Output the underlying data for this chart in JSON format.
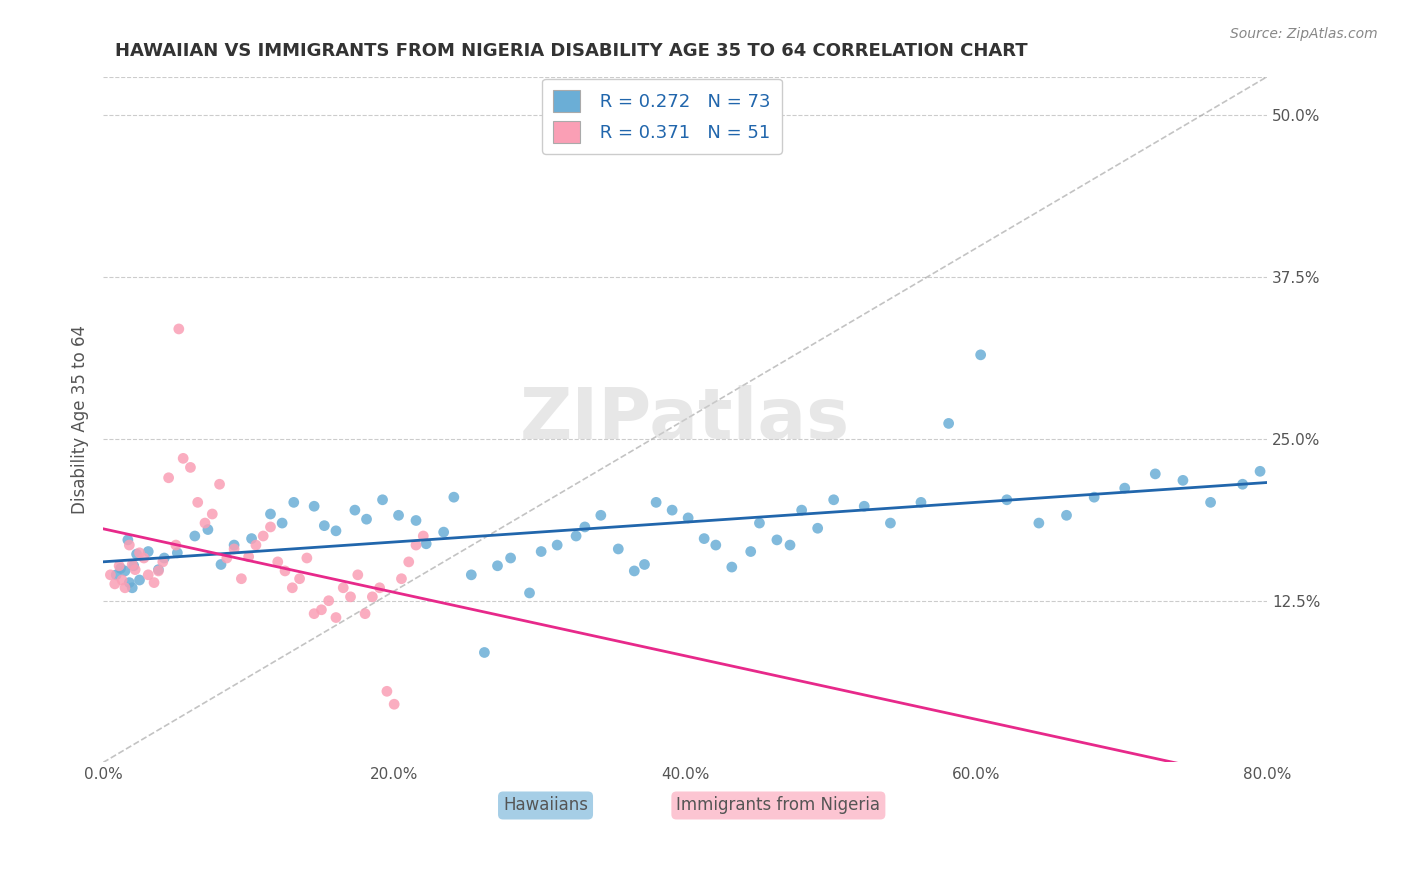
{
  "title": "HAWAIIAN VS IMMIGRANTS FROM NIGERIA DISABILITY AGE 35 TO 64 CORRELATION CHART",
  "source": "Source: ZipAtlas.com",
  "xlabel_ticks": [
    "0.0%",
    "20.0%",
    "40.0%",
    "60.0%",
    "80.0%"
  ],
  "xlabel_vals": [
    0.0,
    20.0,
    40.0,
    60.0,
    80.0
  ],
  "ylabel_ticks": [
    "12.5%",
    "25.0%",
    "37.5%",
    "50.0%"
  ],
  "ylabel_vals": [
    12.5,
    25.0,
    37.5,
    50.0
  ],
  "xlim": [
    0.0,
    80.0
  ],
  "ylim": [
    0.0,
    53.0
  ],
  "ylabel": "Disability Age 35 to 64",
  "legend_label1": "Hawaiians",
  "legend_label2": "Immigrants from Nigeria",
  "r1": "0.272",
  "n1": "73",
  "r2": "0.371",
  "n2": "51",
  "blue_color": "#6baed6",
  "pink_color": "#fa9fb5",
  "blue_line_color": "#2166ac",
  "pink_line_color": "#e7298a",
  "ref_line_color": "#aaaaaa",
  "legend_text_color": "#2166ac",
  "title_color": "#333333",
  "hawaiians_x": [
    2.1,
    1.5,
    2.3,
    1.8,
    0.9,
    1.2,
    2.0,
    3.1,
    1.7,
    2.5,
    3.8,
    4.2,
    5.1,
    6.3,
    7.2,
    8.1,
    9.0,
    10.2,
    11.5,
    12.3,
    13.1,
    14.5,
    15.2,
    16.0,
    17.3,
    18.1,
    19.2,
    20.3,
    21.5,
    22.2,
    23.4,
    24.1,
    25.3,
    26.2,
    27.1,
    28.0,
    29.3,
    30.1,
    31.2,
    32.5,
    33.1,
    34.2,
    35.4,
    36.5,
    37.2,
    38.0,
    39.1,
    40.2,
    41.3,
    42.1,
    43.2,
    44.5,
    45.1,
    46.3,
    47.2,
    48.0,
    49.1,
    50.2,
    52.3,
    54.1,
    56.2,
    58.1,
    60.3,
    62.1,
    64.3,
    66.2,
    68.1,
    70.2,
    72.3,
    74.2,
    76.1,
    78.3,
    79.5
  ],
  "hawaiians_y": [
    15.2,
    14.8,
    16.1,
    13.9,
    14.5,
    15.0,
    13.5,
    16.3,
    17.2,
    14.1,
    14.9,
    15.8,
    16.2,
    17.5,
    18.0,
    15.3,
    16.8,
    17.3,
    19.2,
    18.5,
    20.1,
    19.8,
    18.3,
    17.9,
    19.5,
    18.8,
    20.3,
    19.1,
    18.7,
    16.9,
    17.8,
    20.5,
    14.5,
    8.5,
    15.2,
    15.8,
    13.1,
    16.3,
    16.8,
    17.5,
    18.2,
    19.1,
    16.5,
    14.8,
    15.3,
    20.1,
    19.5,
    18.9,
    17.3,
    16.8,
    15.1,
    16.3,
    18.5,
    17.2,
    16.8,
    19.5,
    18.1,
    20.3,
    19.8,
    18.5,
    20.1,
    26.2,
    31.5,
    20.3,
    18.5,
    19.1,
    20.5,
    21.2,
    22.3,
    21.8,
    20.1,
    21.5,
    22.5
  ],
  "nigeria_x": [
    0.5,
    0.8,
    1.1,
    1.3,
    1.5,
    1.8,
    2.0,
    2.2,
    2.5,
    2.8,
    3.1,
    3.5,
    3.8,
    4.1,
    4.5,
    5.0,
    5.5,
    6.0,
    6.5,
    7.0,
    7.5,
    8.0,
    8.5,
    9.0,
    9.5,
    10.0,
    10.5,
    11.0,
    11.5,
    12.0,
    12.5,
    13.0,
    13.5,
    14.0,
    14.5,
    15.0,
    15.5,
    16.0,
    16.5,
    17.0,
    17.5,
    18.0,
    18.5,
    19.0,
    19.5,
    20.0,
    20.5,
    21.0,
    21.5,
    22.0,
    5.2
  ],
  "nigeria_y": [
    14.5,
    13.8,
    15.2,
    14.1,
    13.5,
    16.8,
    15.3,
    14.9,
    16.2,
    15.8,
    14.5,
    13.9,
    14.8,
    15.5,
    22.0,
    16.8,
    23.5,
    22.8,
    20.1,
    18.5,
    19.2,
    21.5,
    15.8,
    16.5,
    14.2,
    15.9,
    16.8,
    17.5,
    18.2,
    15.5,
    14.8,
    13.5,
    14.2,
    15.8,
    11.5,
    11.8,
    12.5,
    11.2,
    13.5,
    12.8,
    14.5,
    11.5,
    12.8,
    13.5,
    5.5,
    4.5,
    14.2,
    15.5,
    16.8,
    17.5,
    33.5
  ]
}
